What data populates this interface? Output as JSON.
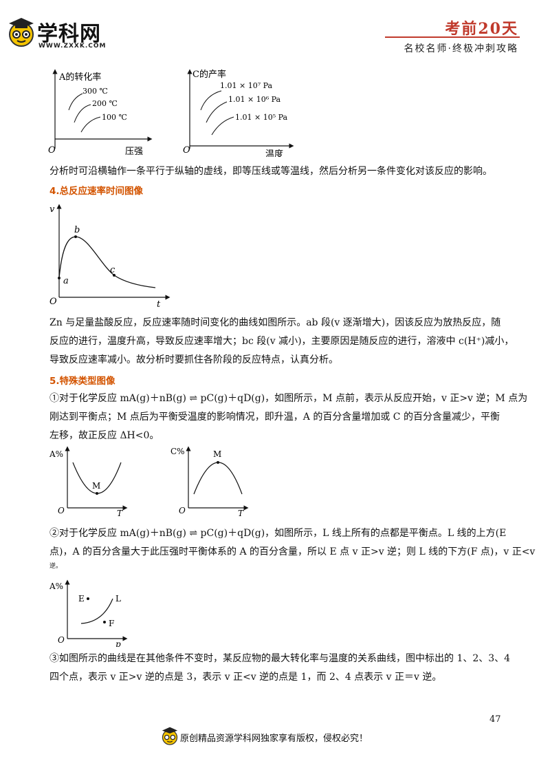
{
  "header": {
    "logo_text": "学科网",
    "logo_url": "WWW.ZXXK.COM",
    "brand": "考前20天",
    "tagline": "名校名师·终极冲刺攻略"
  },
  "fig_pressure": {
    "ylabel": "A的转化率",
    "xlabel": "压强",
    "origin": "O",
    "curves": [
      "300 ℃",
      "200 ℃",
      "100 ℃"
    ]
  },
  "fig_temperature": {
    "ylabel": "C的产率",
    "xlabel": "温度",
    "origin": "O",
    "curves": [
      "1.01 × 10⁷ Pa",
      "1.01 × 10⁶ Pa",
      "1.01 × 10⁵ Pa"
    ]
  },
  "para_analysis": "分析时可沿横轴作一条平行于纵轴的虚线，即等压线或等温线，然后分析另一条件变化对该反应的影响。",
  "section4": {
    "heading": "4.总反应速率时间图像",
    "fig": {
      "ylabel": "v",
      "xlabel": "t",
      "origin": "O",
      "points": [
        "a",
        "b",
        "c"
      ]
    },
    "lines": [
      "Zn 与足量盐酸反应，反应速率随时间变化的曲线如图所示。ab 段(v 逐渐增大)，因该反应为放热反应，随",
      "反应的进行，温度升高，导致反应速率增大；bc 段(v 减小)，主要原因是随反应的进行，溶液中 c(H⁺)减小，",
      "导致反应速率减小。故分析时要抓住各阶段的反应特点，认真分析。"
    ]
  },
  "section5": {
    "heading": "5.特殊类型图像",
    "item1_lines": [
      "①对于化学反应 mA(g)＋nB(g) ⇌ pC(g)＋qD(g)，如图所示，M 点前，表示从反应开始，v 正>v 逆；M 点为",
      "刚达到平衡点；M 点后为平衡受温度的影响情况，即升温，A 的百分含量增加或 C 的百分含量减少，平衡",
      "左移，故正反应 ΔH<0。"
    ],
    "fig_a": {
      "ylabel": "A%",
      "xlabel": "T",
      "origin": "O",
      "point": "M"
    },
    "fig_c": {
      "ylabel": "C%",
      "xlabel": "T",
      "origin": "O",
      "point": "M"
    },
    "item2_lines": [
      "②对于化学反应 mA(g)＋nB(g) ⇌ pC(g)＋qD(g)，如图所示，L 线上所有的点都是平衡点。L 线的上方(E",
      "点)，A 的百分含量大于此压强时平衡体系的 A 的百分含量，所以 E 点 v 正>v 逆；则 L 线的下方(F 点)，v 正<v",
      "逆。"
    ],
    "fig_l": {
      "ylabel": "A%",
      "xlabel": "p",
      "origin": "O",
      "points": [
        "E",
        "L",
        "F"
      ]
    },
    "item3_lines": [
      "③如图所示的曲线是在其他条件不变时，某反应物的最大转化率与温度的关系曲线，图中标出的 1、2、3、4",
      "四个点，表示 v 正>v 逆的点是 3，表示 v 正<v 逆的点是 1，而 2、4 点表示 v 正＝v 逆。"
    ]
  },
  "footer": {
    "page_number": "47",
    "copyright": "原创精品资源学科网独家享有版权，侵权必究！"
  }
}
